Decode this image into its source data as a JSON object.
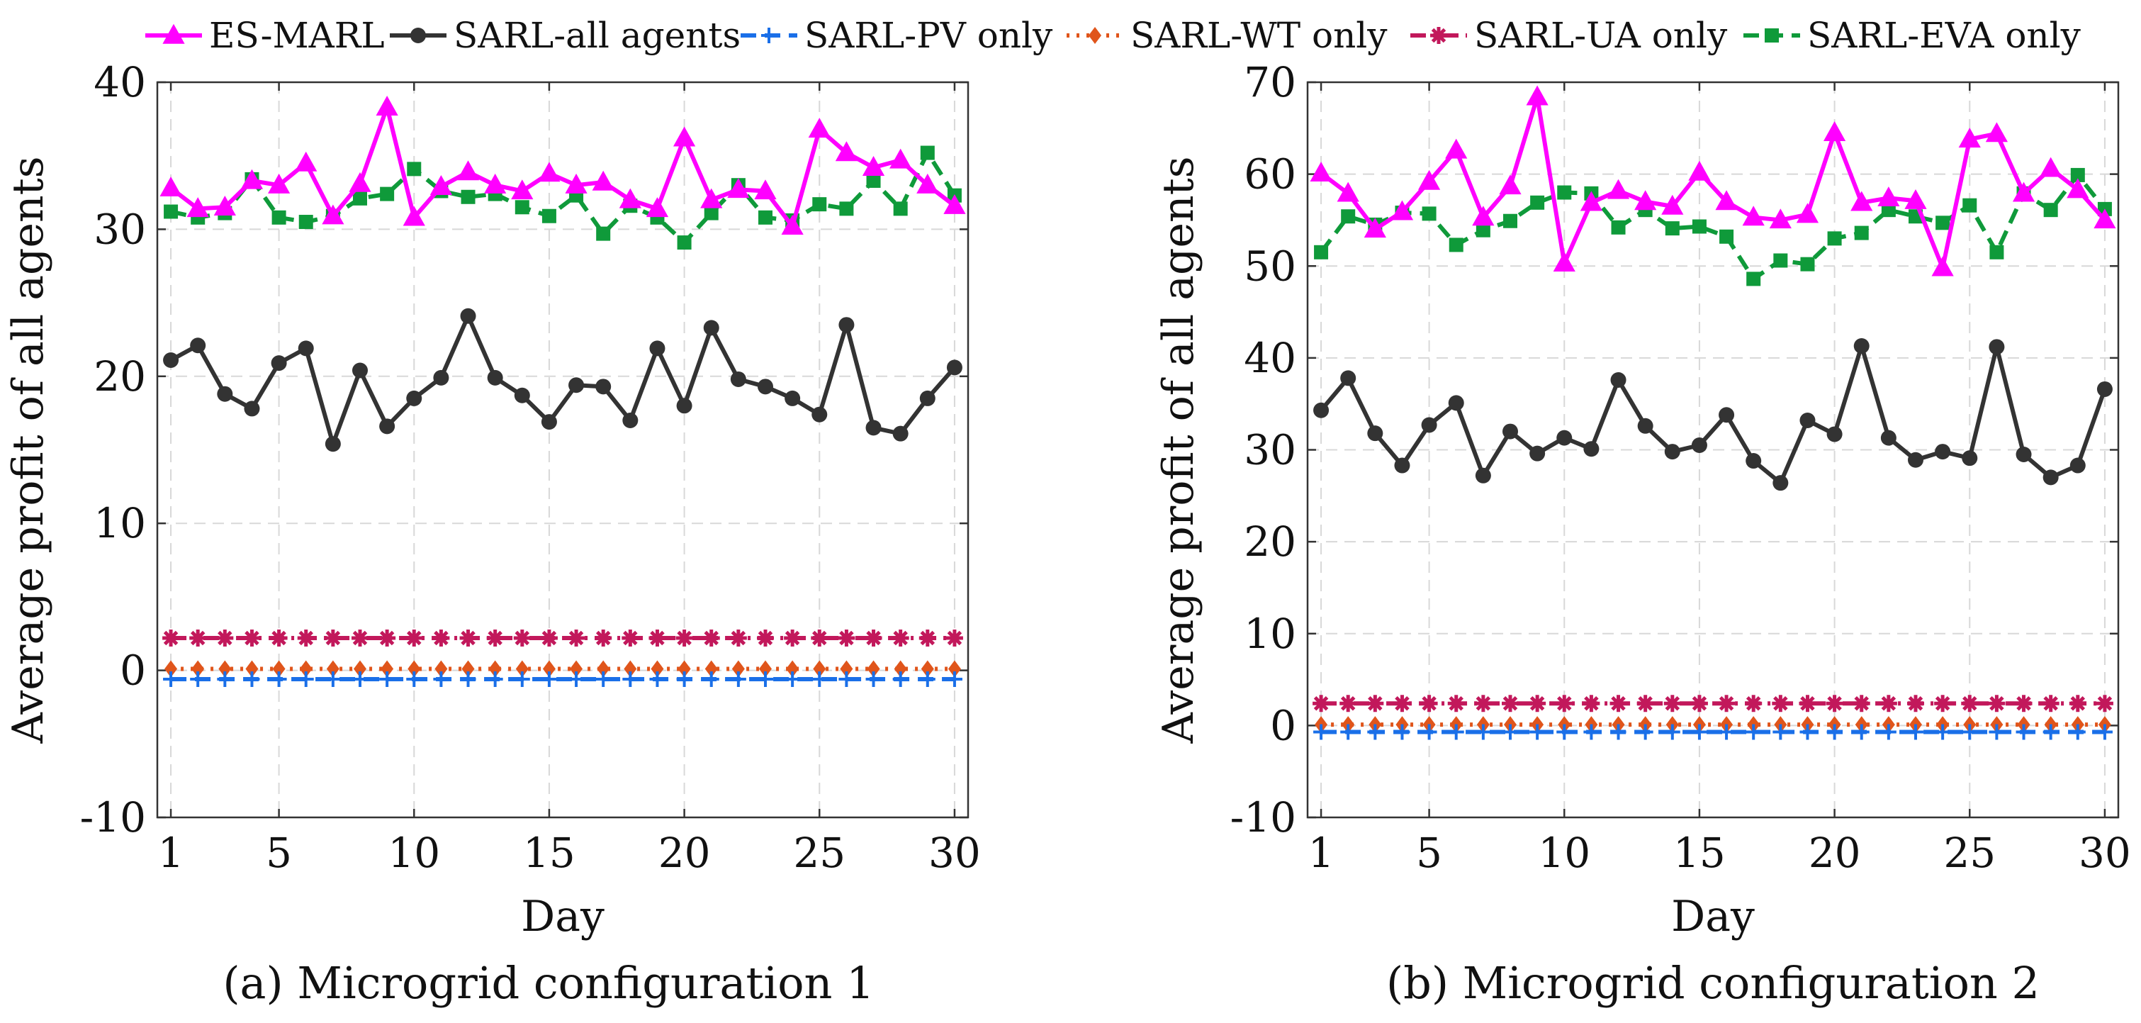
{
  "figure": {
    "legend": [
      {
        "name": "ES-MARL",
        "color": "#ff00ff",
        "marker": "triangle",
        "dash": "solid"
      },
      {
        "name": "SARL-all agents",
        "color": "#333333",
        "marker": "circle",
        "dash": "solid"
      },
      {
        "name": "SARL-PV only",
        "color": "#1a6fe8",
        "marker": "plus",
        "dash": "dashed"
      },
      {
        "name": "SARL-WT only",
        "color": "#e0551b",
        "marker": "diamond",
        "dash": "dotted"
      },
      {
        "name": "SARL-UA only",
        "color": "#c2185b",
        "marker": "asterisk",
        "dash": "dashdot"
      },
      {
        "name": "SARL-EVA only",
        "color": "#0f9a3a",
        "marker": "square",
        "dash": "dashed"
      }
    ]
  },
  "chart_data": [
    {
      "type": "line",
      "caption": "(a) Microgrid configuration 1",
      "xlabel": "Day",
      "ylabel": "Average profit of all agents",
      "xlim": [
        0.5,
        30.5
      ],
      "ylim": [
        -10,
        40
      ],
      "xticks": [
        1,
        5,
        10,
        15,
        20,
        25,
        30
      ],
      "yticks": [
        -10,
        0,
        10,
        20,
        30,
        40
      ],
      "grid": true,
      "x": [
        1,
        2,
        3,
        4,
        5,
        6,
        7,
        8,
        9,
        10,
        11,
        12,
        13,
        14,
        15,
        16,
        17,
        18,
        19,
        20,
        21,
        22,
        23,
        24,
        25,
        26,
        27,
        28,
        29,
        30
      ],
      "series": [
        {
          "name": "ES-MARL",
          "values": [
            32.8,
            31.4,
            31.5,
            33.3,
            33.0,
            34.5,
            30.9,
            33.1,
            38.3,
            30.8,
            32.9,
            33.9,
            33.0,
            32.6,
            33.8,
            33.0,
            33.2,
            32.0,
            31.4,
            36.2,
            32.0,
            32.7,
            32.6,
            30.2,
            36.8,
            35.2,
            34.2,
            34.7,
            33.0,
            31.6
          ]
        },
        {
          "name": "SARL-all agents",
          "values": [
            21.1,
            22.1,
            18.8,
            17.8,
            20.9,
            21.9,
            15.4,
            20.4,
            16.6,
            18.5,
            19.9,
            24.1,
            19.9,
            18.7,
            16.9,
            19.4,
            19.3,
            17.0,
            21.9,
            18.0,
            23.3,
            19.8,
            19.3,
            18.5,
            17.4,
            23.5,
            16.5,
            16.1,
            18.5,
            20.6
          ]
        },
        {
          "name": "SARL-PV only",
          "values": [
            -0.6,
            -0.6,
            -0.6,
            -0.6,
            -0.6,
            -0.6,
            -0.6,
            -0.6,
            -0.6,
            -0.6,
            -0.6,
            -0.6,
            -0.6,
            -0.6,
            -0.6,
            -0.6,
            -0.6,
            -0.6,
            -0.6,
            -0.6,
            -0.6,
            -0.6,
            -0.6,
            -0.6,
            -0.6,
            -0.6,
            -0.6,
            -0.6,
            -0.6,
            -0.6
          ]
        },
        {
          "name": "SARL-WT only",
          "values": [
            0.1,
            0.1,
            0.1,
            0.1,
            0.1,
            0.1,
            0.1,
            0.1,
            0.1,
            0.1,
            0.1,
            0.1,
            0.1,
            0.1,
            0.1,
            0.1,
            0.1,
            0.1,
            0.1,
            0.1,
            0.1,
            0.1,
            0.1,
            0.1,
            0.1,
            0.1,
            0.1,
            0.1,
            0.1,
            0.1
          ]
        },
        {
          "name": "SARL-UA only",
          "values": [
            2.2,
            2.2,
            2.2,
            2.2,
            2.2,
            2.2,
            2.2,
            2.2,
            2.2,
            2.2,
            2.2,
            2.2,
            2.2,
            2.2,
            2.2,
            2.2,
            2.2,
            2.2,
            2.2,
            2.2,
            2.2,
            2.2,
            2.2,
            2.2,
            2.2,
            2.2,
            2.2,
            2.2,
            2.2,
            2.2
          ]
        },
        {
          "name": "SARL-EVA only",
          "values": [
            31.2,
            30.8,
            31.1,
            33.4,
            30.8,
            30.5,
            30.9,
            32.1,
            32.4,
            34.1,
            32.6,
            32.2,
            32.4,
            31.5,
            30.9,
            32.3,
            29.7,
            31.6,
            30.8,
            29.1,
            31.1,
            33.0,
            30.8,
            30.6,
            31.7,
            31.4,
            33.3,
            31.4,
            35.2,
            32.3
          ]
        }
      ]
    },
    {
      "type": "line",
      "caption": "(b) Microgrid configuration 2",
      "xlabel": "Day",
      "ylabel": "Average profit of all agents",
      "xlim": [
        0.5,
        30.5
      ],
      "ylim": [
        -10,
        70
      ],
      "xticks": [
        1,
        5,
        10,
        15,
        20,
        25,
        30
      ],
      "yticks": [
        -10,
        0,
        10,
        20,
        30,
        40,
        50,
        60,
        70
      ],
      "grid": true,
      "x": [
        1,
        2,
        3,
        4,
        5,
        6,
        7,
        8,
        9,
        10,
        11,
        12,
        13,
        14,
        15,
        16,
        17,
        18,
        19,
        20,
        21,
        22,
        23,
        24,
        25,
        26,
        27,
        28,
        29,
        30
      ],
      "series": [
        {
          "name": "ES-MARL",
          "values": [
            60.1,
            57.9,
            54.0,
            55.9,
            59.2,
            62.6,
            55.3,
            58.7,
            68.4,
            50.3,
            56.9,
            58.2,
            57.0,
            56.5,
            60.2,
            57.0,
            55.3,
            55.0,
            55.6,
            64.5,
            56.9,
            57.4,
            57.1,
            49.8,
            63.8,
            64.4,
            57.9,
            60.6,
            58.3,
            55.0
          ]
        },
        {
          "name": "SARL-all agents",
          "values": [
            34.3,
            37.8,
            31.8,
            28.3,
            32.7,
            35.1,
            27.2,
            32.0,
            29.6,
            31.3,
            30.1,
            37.6,
            32.6,
            29.8,
            30.5,
            33.8,
            28.8,
            26.4,
            33.2,
            31.7,
            41.3,
            31.3,
            28.9,
            29.8,
            29.1,
            41.2,
            29.5,
            27.0,
            28.3,
            36.6
          ]
        },
        {
          "name": "SARL-PV only",
          "values": [
            -0.7,
            -0.7,
            -0.7,
            -0.7,
            -0.7,
            -0.7,
            -0.7,
            -0.7,
            -0.7,
            -0.7,
            -0.7,
            -0.7,
            -0.7,
            -0.7,
            -0.7,
            -0.7,
            -0.7,
            -0.7,
            -0.7,
            -0.7,
            -0.7,
            -0.7,
            -0.7,
            -0.7,
            -0.7,
            -0.7,
            -0.7,
            -0.7,
            -0.7,
            -0.7
          ]
        },
        {
          "name": "SARL-WT only",
          "values": [
            0.1,
            0.1,
            0.1,
            0.1,
            0.1,
            0.1,
            0.1,
            0.1,
            0.1,
            0.1,
            0.1,
            0.1,
            0.1,
            0.1,
            0.1,
            0.1,
            0.1,
            0.1,
            0.1,
            0.1,
            0.1,
            0.1,
            0.1,
            0.1,
            0.1,
            0.1,
            0.1,
            0.1,
            0.1,
            0.1
          ]
        },
        {
          "name": "SARL-UA only",
          "values": [
            2.4,
            2.4,
            2.4,
            2.4,
            2.4,
            2.4,
            2.4,
            2.4,
            2.4,
            2.4,
            2.4,
            2.4,
            2.4,
            2.4,
            2.4,
            2.4,
            2.4,
            2.4,
            2.4,
            2.4,
            2.4,
            2.4,
            2.4,
            2.4,
            2.4,
            2.4,
            2.4,
            2.4,
            2.4,
            2.4
          ]
        },
        {
          "name": "SARL-EVA only",
          "values": [
            51.5,
            55.4,
            54.5,
            55.8,
            55.7,
            52.3,
            53.9,
            54.9,
            56.9,
            58.0,
            57.9,
            54.2,
            56.1,
            54.1,
            54.3,
            53.2,
            48.6,
            50.6,
            50.2,
            53.0,
            53.6,
            56.1,
            55.4,
            54.7,
            56.6,
            51.5,
            57.9,
            56.1,
            59.9,
            56.2
          ]
        }
      ]
    }
  ]
}
